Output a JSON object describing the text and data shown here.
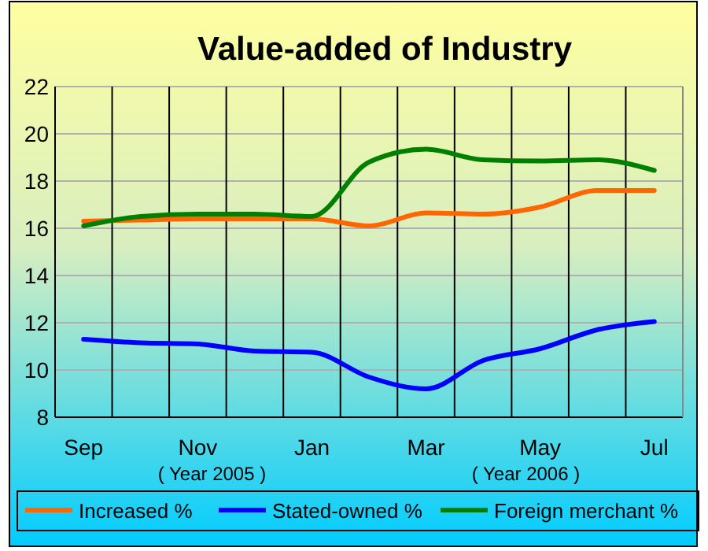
{
  "chart_data": {
    "type": "line",
    "title": "Value-added of Industry",
    "categories": [
      "Sep",
      null,
      "Nov",
      null,
      "Jan",
      null,
      "Mar",
      null,
      "May",
      null,
      "Jul"
    ],
    "series": [
      {
        "name": "Increased %",
        "color": "#ff6600",
        "values": [
          16.3,
          16.35,
          16.4,
          16.4,
          16.4,
          16.1,
          16.65,
          16.6,
          16.9,
          17.6,
          17.6
        ]
      },
      {
        "name": "Stated-owned %",
        "color": "#0000ff",
        "values": [
          11.3,
          11.15,
          11.1,
          10.8,
          10.75,
          9.7,
          9.2,
          10.4,
          10.9,
          11.7,
          12.05
        ]
      },
      {
        "name": "Foreign merchant %",
        "color": "#008000",
        "values": [
          16.1,
          16.5,
          16.6,
          16.6,
          16.5,
          18.8,
          19.35,
          18.9,
          18.85,
          18.9,
          18.45
        ]
      }
    ],
    "ylim": [
      8,
      22
    ],
    "yticks": [
      8,
      10,
      12,
      14,
      16,
      18,
      20,
      22
    ],
    "grid": true,
    "legend": "bottom",
    "marker": "none",
    "line_style": "solid",
    "annotations": [
      "( Year 2005 )",
      "( Year 2006 )"
    ]
  }
}
